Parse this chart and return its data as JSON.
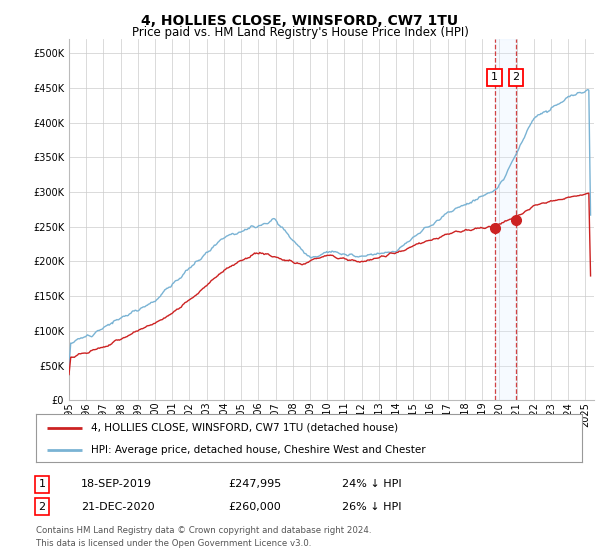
{
  "title": "4, HOLLIES CLOSE, WINSFORD, CW7 1TU",
  "subtitle": "Price paid vs. HM Land Registry's House Price Index (HPI)",
  "yticks": [
    0,
    50000,
    100000,
    150000,
    200000,
    250000,
    300000,
    350000,
    400000,
    450000,
    500000
  ],
  "xlim_start": 1995.0,
  "xlim_end": 2025.5,
  "ylim": [
    0,
    520000
  ],
  "hpi_color": "#7ab3d4",
  "property_color": "#cc2222",
  "marker_color": "#cc2222",
  "vline_color": "#cc2222",
  "shade_color": "#ddeeff",
  "transaction1_x": 2019.72,
  "transaction1_y": 247995,
  "transaction2_x": 2020.97,
  "transaction2_y": 260000,
  "legend_property": "4, HOLLIES CLOSE, WINSFORD, CW7 1TU (detached house)",
  "legend_hpi": "HPI: Average price, detached house, Cheshire West and Chester",
  "table_rows": [
    {
      "num": "1",
      "date": "18-SEP-2019",
      "price": "£247,995",
      "hpi": "24% ↓ HPI"
    },
    {
      "num": "2",
      "date": "21-DEC-2020",
      "price": "£260,000",
      "hpi": "26% ↓ HPI"
    }
  ],
  "footnote1": "Contains HM Land Registry data © Crown copyright and database right 2024.",
  "footnote2": "This data is licensed under the Open Government Licence v3.0.",
  "background_color": "#ffffff",
  "grid_color": "#cccccc",
  "title_fontsize": 10,
  "subtitle_fontsize": 8.5,
  "tick_fontsize": 7,
  "legend_fontsize": 7.5,
  "table_fontsize": 8
}
